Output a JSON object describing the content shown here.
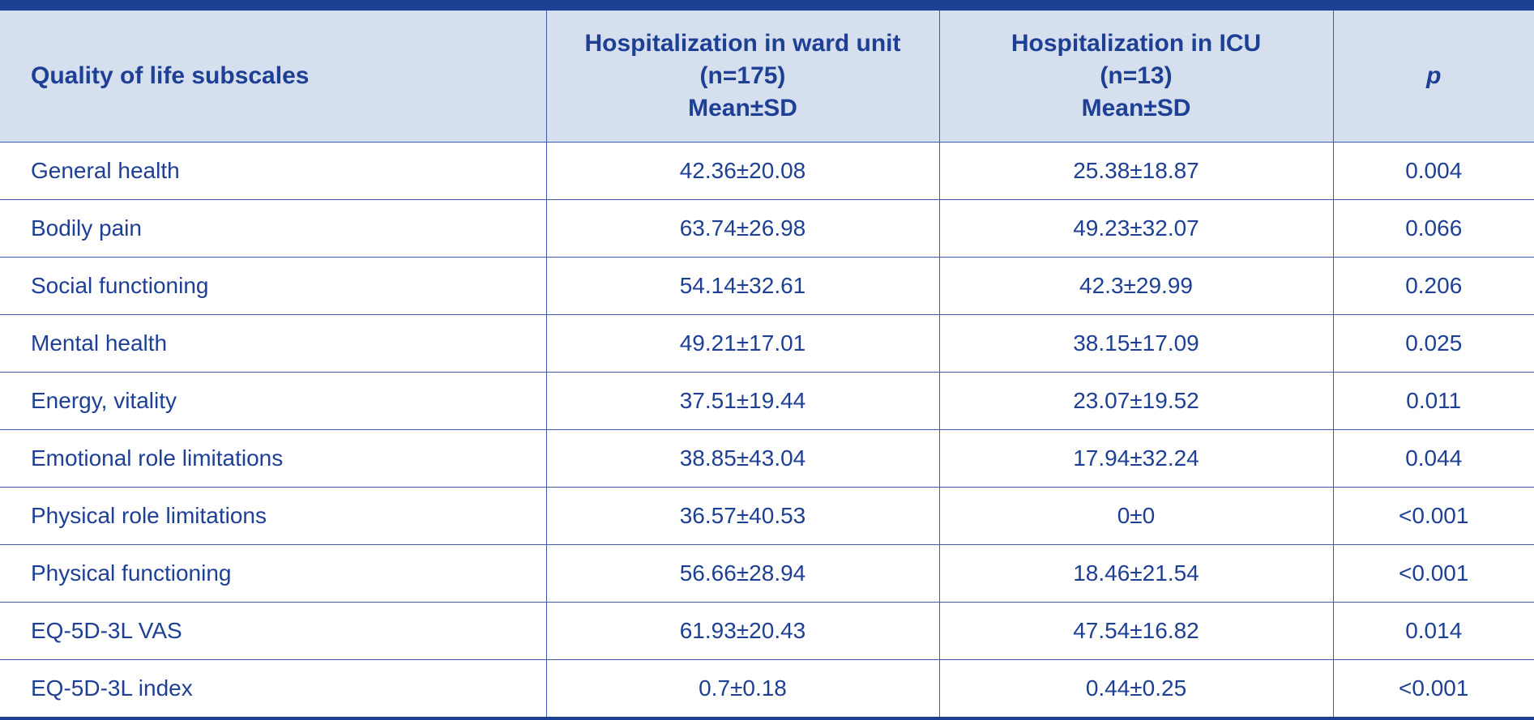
{
  "table": {
    "headers": {
      "subscale": "Quality of life subscales",
      "ward": [
        "Hospitalization in ward unit",
        "(n=175)",
        "Mean±SD"
      ],
      "icu": [
        "Hospitalization in ICU",
        "(n=13)",
        "Mean±SD"
      ],
      "p": "p"
    },
    "rows": [
      {
        "subscale": "General health",
        "ward": "42.36±20.08",
        "icu": "25.38±18.87",
        "p": "0.004"
      },
      {
        "subscale": "Bodily pain",
        "ward": "63.74±26.98",
        "icu": "49.23±32.07",
        "p": "0.066"
      },
      {
        "subscale": "Social functioning",
        "ward": "54.14±32.61",
        "icu": "42.3±29.99",
        "p": "0.206"
      },
      {
        "subscale": "Mental health",
        "ward": "49.21±17.01",
        "icu": "38.15±17.09",
        "p": "0.025"
      },
      {
        "subscale": "Energy, vitality",
        "ward": "37.51±19.44",
        "icu": "23.07±19.52",
        "p": "0.011"
      },
      {
        "subscale": "Emotional role limitations",
        "ward": "38.85±43.04",
        "icu": "17.94±32.24",
        "p": "0.044"
      },
      {
        "subscale": "Physical role limitations",
        "ward": "36.57±40.53",
        "icu": "0±0",
        "p": "<0.001"
      },
      {
        "subscale": "Physical functioning",
        "ward": "56.66±28.94",
        "icu": "18.46±21.54",
        "p": "<0.001"
      },
      {
        "subscale": "EQ-5D-3L VAS",
        "ward": "61.93±20.43",
        "icu": "47.54±16.82",
        "p": "0.014"
      },
      {
        "subscale": "EQ-5D-3L index",
        "ward": "0.7±0.18",
        "icu": "0.44±0.25",
        "p": "<0.001"
      }
    ]
  }
}
